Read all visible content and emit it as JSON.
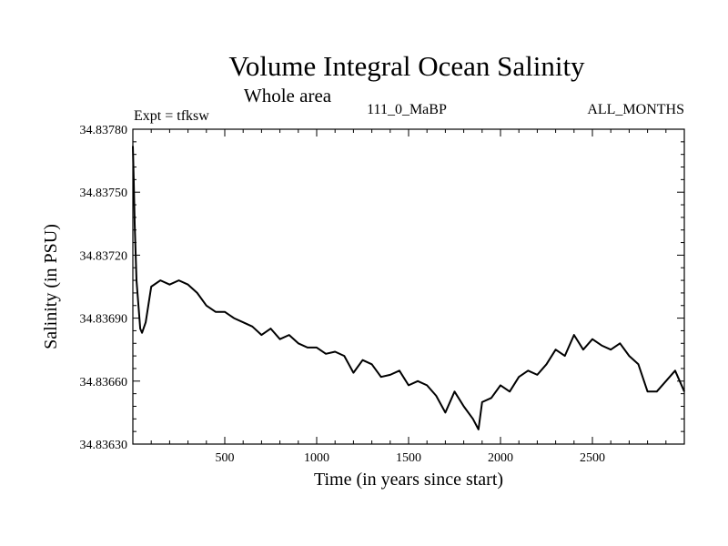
{
  "chart_data": {
    "type": "line",
    "title": "Volume Integral Ocean Salinity",
    "subtitle": "Whole area",
    "annotations": {
      "left": "Expt = tfksw",
      "center": "111_0_MaBP",
      "right": "ALL_MONTHS"
    },
    "xlabel": "Time (in years since start)",
    "ylabel": "Salinity (in PSU)",
    "xlim": [
      0,
      3000
    ],
    "ylim": [
      34.8363,
      34.8378
    ],
    "xticks": [
      500,
      1000,
      1500,
      2000,
      2500
    ],
    "xtick_labels": [
      "500",
      "1000",
      "1500",
      "2000",
      "2500"
    ],
    "yticks": [
      34.8363,
      34.8366,
      34.8369,
      34.8372,
      34.8375,
      34.8378
    ],
    "ytick_labels": [
      "34.83630",
      "34.83660",
      "34.83690",
      "34.83720",
      "34.83750",
      "34.83780"
    ],
    "grid": false,
    "series": [
      {
        "name": "Salinity",
        "x": [
          0,
          5,
          10,
          20,
          40,
          50,
          70,
          100,
          150,
          200,
          250,
          300,
          350,
          400,
          450,
          500,
          550,
          600,
          650,
          700,
          750,
          800,
          850,
          900,
          950,
          1000,
          1050,
          1100,
          1150,
          1200,
          1250,
          1300,
          1350,
          1400,
          1450,
          1500,
          1550,
          1600,
          1650,
          1700,
          1750,
          1800,
          1850,
          1880,
          1900,
          1950,
          2000,
          2050,
          2100,
          2150,
          2200,
          2250,
          2300,
          2350,
          2400,
          2450,
          2500,
          2550,
          2600,
          2650,
          2700,
          2750,
          2800,
          2850,
          2900,
          2950,
          3000
        ],
        "values": [
          34.83772,
          34.83755,
          34.83735,
          34.83708,
          34.83685,
          34.83683,
          34.83688,
          34.83705,
          34.83708,
          34.83706,
          34.83708,
          34.83706,
          34.83702,
          34.83696,
          34.83693,
          34.83693,
          34.8369,
          34.83688,
          34.83686,
          34.83682,
          34.83685,
          34.8368,
          34.83682,
          34.83678,
          34.83676,
          34.83676,
          34.83673,
          34.83674,
          34.83672,
          34.83664,
          34.8367,
          34.83668,
          34.83662,
          34.83663,
          34.83665,
          34.83658,
          34.8366,
          34.83658,
          34.83653,
          34.83645,
          34.83655,
          34.83648,
          34.83642,
          34.83637,
          34.8365,
          34.83652,
          34.83658,
          34.83655,
          34.83662,
          34.83665,
          34.83663,
          34.83668,
          34.83675,
          34.83672,
          34.83682,
          34.83675,
          34.8368,
          34.83677,
          34.83675,
          34.83678,
          34.83672,
          34.83668,
          34.83655,
          34.83655,
          34.8366,
          34.83665,
          34.83655
        ]
      }
    ]
  }
}
